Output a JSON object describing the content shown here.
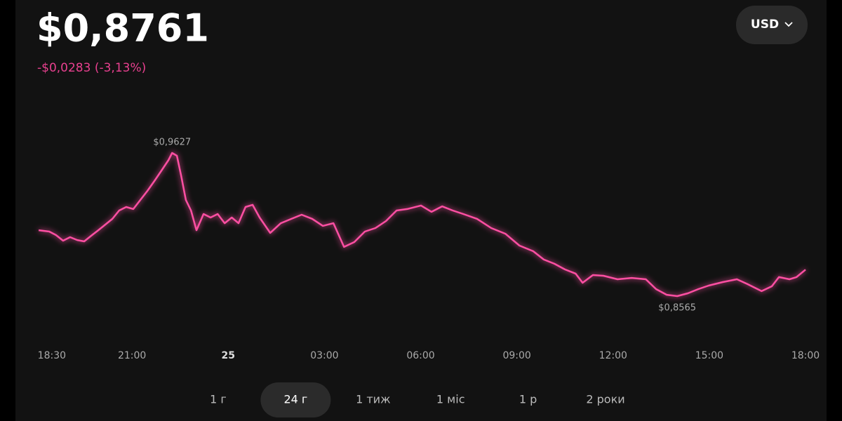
{
  "header": {
    "price": "$0,8761",
    "change": "-$0,0283 (-3,13%)",
    "currency": "USD"
  },
  "chart_data": {
    "type": "line",
    "color": "#ff4fa3",
    "x": [
      18.09,
      18.42,
      18.63,
      18.85,
      19.07,
      19.29,
      19.51,
      19.73,
      19.95,
      20.17,
      20.39,
      20.6,
      20.82,
      21.04,
      21.26,
      21.48,
      21.7,
      21.92,
      22.14,
      22.25,
      22.4,
      22.53,
      22.68,
      22.84,
      23.01,
      23.23,
      23.45,
      23.67,
      23.89,
      24.11,
      24.32,
      24.54,
      24.76,
      24.98,
      25.31,
      25.64,
      25.97,
      26.29,
      26.62,
      26.95,
      27.28,
      27.61,
      27.93,
      28.26,
      28.59,
      28.92,
      29.25,
      29.58,
      30.01,
      30.34,
      30.67,
      31,
      31.33,
      31.76,
      32.2,
      32.64,
      33.08,
      33.51,
      33.84,
      34.17,
      34.5,
      34.83,
      35.05,
      35.37,
      35.7,
      36.14,
      36.58,
      37.02,
      37.34,
      37.67,
      38,
      38.33,
      38.66,
      38.98,
      39.42,
      39.86,
      40.19,
      40.63,
      40.95,
      41.17,
      41.5,
      41.72,
      42
    ],
    "values": [
      0.9054,
      0.9044,
      0.9018,
      0.8976,
      0.9002,
      0.8981,
      0.8971,
      0.9013,
      0.9054,
      0.9096,
      0.9138,
      0.92,
      0.9226,
      0.9211,
      0.9278,
      0.9346,
      0.9419,
      0.9497,
      0.9575,
      0.9627,
      0.9606,
      0.946,
      0.9278,
      0.92,
      0.9054,
      0.9174,
      0.9148,
      0.9174,
      0.9106,
      0.9148,
      0.9106,
      0.9226,
      0.9242,
      0.9148,
      0.9034,
      0.9106,
      0.9138,
      0.9169,
      0.9138,
      0.9086,
      0.9106,
      0.893,
      0.8966,
      0.9044,
      0.907,
      0.9122,
      0.92,
      0.9211,
      0.9237,
      0.919,
      0.9231,
      0.92,
      0.9174,
      0.9138,
      0.907,
      0.9028,
      0.894,
      0.8898,
      0.8836,
      0.8805,
      0.8763,
      0.8732,
      0.8664,
      0.8721,
      0.8716,
      0.869,
      0.87,
      0.869,
      0.8617,
      0.8575,
      0.8565,
      0.8586,
      0.8617,
      0.8643,
      0.8669,
      0.869,
      0.8654,
      0.8602,
      0.8638,
      0.8706,
      0.869,
      0.8706,
      0.8761
    ],
    "xlim": [
      18,
      42
    ],
    "ylim": [
      0.8263,
      1.0033
    ],
    "xticks": [
      {
        "value": 18.5,
        "label": "18:30"
      },
      {
        "value": 21,
        "label": "21:00"
      },
      {
        "value": 24,
        "label": "25",
        "bold": true
      },
      {
        "value": 27,
        "label": "03:00"
      },
      {
        "value": 30,
        "label": "06:00"
      },
      {
        "value": 33,
        "label": "09:00"
      },
      {
        "value": 36,
        "label": "12:00"
      },
      {
        "value": 39,
        "label": "15:00"
      },
      {
        "value": 42,
        "label": "18:00"
      }
    ],
    "annotations": [
      {
        "text": "$0,9627",
        "x": 22.25,
        "y": 0.9627,
        "position": "above"
      },
      {
        "text": "$0,8565",
        "x": 38,
        "y": 0.8565,
        "position": "below"
      }
    ]
  },
  "ranges": [
    "1 г",
    "24 г",
    "1 тиж",
    "1 міс",
    "1 р",
    "2 роки"
  ],
  "active_range": 1
}
